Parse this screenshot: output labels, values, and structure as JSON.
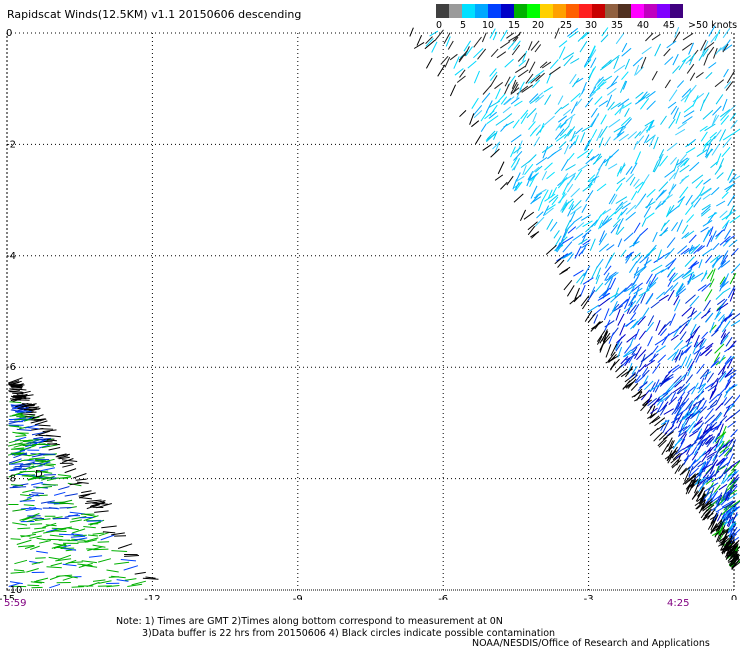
{
  "title": "Rapidscat Winds(12.5KM) v1.1 20150606 descending",
  "legend": {
    "colors": [
      "#404040",
      "#9a9a9a",
      "#00e0ff",
      "#00a8ff",
      "#0040ff",
      "#0000c8",
      "#00b000",
      "#00ff00",
      "#ffd000",
      "#ffa000",
      "#ff6000",
      "#ff2020",
      "#c80000",
      "#906040",
      "#503020",
      "#ff00ff",
      "#c000c0",
      "#8000ff",
      "#400080"
    ],
    "labels": [
      "0",
      "5",
      "10",
      "15",
      "20",
      "25",
      "30",
      "35",
      "40",
      "45",
      ">50 knots"
    ]
  },
  "axes": {
    "x_ticks": [
      "-15",
      "-12",
      "-9",
      "-6",
      "-3",
      "0"
    ],
    "y_ticks": [
      "0",
      "-2",
      "-4",
      "-6",
      "-8",
      "-10"
    ],
    "xlim": [
      -15,
      0
    ],
    "ylim": [
      -10,
      0
    ]
  },
  "times": {
    "left": "5:59",
    "right": "4:25"
  },
  "notes": {
    "line1": "Note: 1) Times are GMT 2)Times along bottom correspond to measurement at 0N",
    "line2": "3)Data buffer is 22 hrs from 20150606 4) Black circles indicate possible contamination"
  },
  "credit": "NOAA/NESDIS/Office of Research and Applications",
  "marker": "D"
}
